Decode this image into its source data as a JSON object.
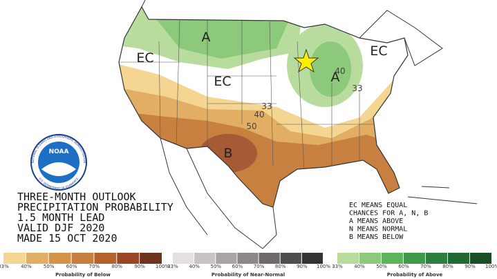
{
  "map": {
    "labels": [
      "A",
      "EC",
      "EC",
      "A",
      "EC",
      "B",
      "33",
      "40",
      "50",
      "33",
      "40"
    ]
  },
  "logo": {
    "name": "NOAA",
    "upper": "NATIONAL OCEANIC AND ATMOSPHERIC ADMINISTRATION",
    "lower": "U.S. DEPARTMENT OF COMMERCE"
  },
  "title_block": {
    "lines": [
      "THREE-MONTH OUTLOOK",
      "PRECIPITATION PROBABILITY",
      "1.5 MONTH LEAD",
      "VALID DJF 2020",
      "MADE 15 OCT 2020"
    ]
  },
  "key": {
    "lines": [
      "EC MEANS EQUAL",
      "CHANCES FOR A, N, B",
      "A MEANS ABOVE",
      "N MEANS NORMAL",
      "B MEANS BELOW"
    ]
  },
  "legends": [
    {
      "title": "Probability of Below",
      "ticks": [
        "33%",
        "40%",
        "50%",
        "60%",
        "70%",
        "80%",
        "90%",
        "100%"
      ]
    },
    {
      "title": "Probability of Near-Normal",
      "ticks": [
        "33%",
        "40%",
        "50%",
        "60%",
        "70%",
        "80%",
        "90%",
        "100%"
      ]
    },
    {
      "title": "Probability of Above",
      "ticks": [
        "33%",
        "40%",
        "50%",
        "60%",
        "70%",
        "80%",
        "90%",
        "100%"
      ]
    }
  ]
}
